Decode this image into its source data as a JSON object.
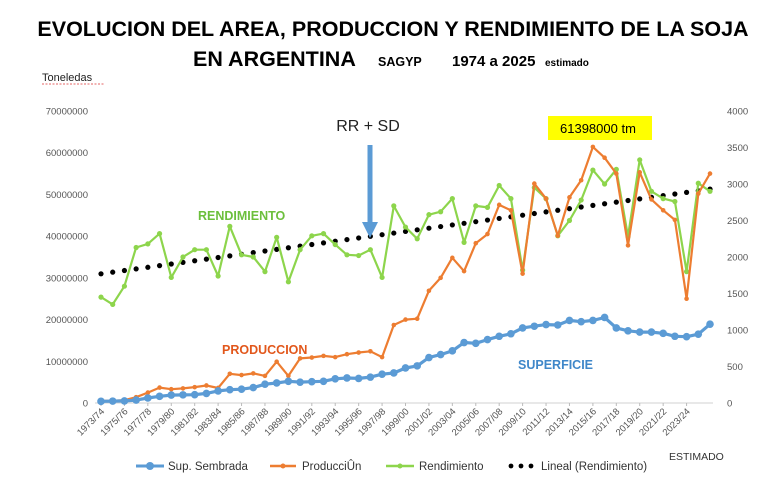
{
  "chart_data": {
    "type": "line",
    "title_line1": "EVOLUCION DEL AREA, PRODUCCION Y RENDIMIENTO DE LA SOJA",
    "title_line2": "EN ARGENTINA",
    "subtitle_source": "SAGYP",
    "subtitle_range": "1974 a  2025",
    "subtitle_note": "estimado",
    "left_axis_label": "Toneledas",
    "left_ylim": [
      0,
      70000000
    ],
    "left_ticks": [
      "0",
      "10000000",
      "20000000",
      "30000000",
      "40000000",
      "50000000",
      "60000000",
      "70000000"
    ],
    "right_ylim": [
      0,
      4000
    ],
    "right_ticks": [
      "0",
      "500",
      "1000",
      "1500",
      "2000",
      "2500",
      "3000",
      "3500",
      "4000"
    ],
    "x_tick_labels": [
      "1973/74",
      "1975/76",
      "1977/78",
      "1979/80",
      "1981/82",
      "1983/84",
      "1985/86",
      "1987/88",
      "1989/90",
      "1991/92",
      "1993/94",
      "1995/96",
      "1997/98",
      "1999/00",
      "2001/02",
      "2003/04",
      "2005/06",
      "2007/08",
      "2009/10",
      "2011/12",
      "2013/14",
      "2015/16",
      "2017/18",
      "2019/20",
      "2021/22",
      "2023/24"
    ],
    "annotation_rr": "RR + SD",
    "annotation_max": "61398000 tm",
    "label_rendimiento": "RENDIMIENTO",
    "label_produccion": "PRODUCCION",
    "label_superficie": "SUPERFICIE",
    "estimado_note": "ESTIMADO",
    "series": [
      {
        "name": "Sup. Sembrada",
        "axis": "left",
        "color": "#5b9bd5",
        "values": [
          400000,
          450000,
          500000,
          700000,
          1200000,
          1600000,
          1900000,
          1950000,
          2000000,
          2300000,
          2900000,
          3200000,
          3300000,
          3700000,
          4500000,
          4800000,
          5200000,
          5000000,
          5100000,
          5200000,
          5800000,
          6000000,
          5900000,
          6200000,
          6900000,
          7200000,
          8400000,
          8900000,
          10900000,
          11600000,
          12500000,
          14500000,
          14300000,
          15200000,
          16000000,
          16600000,
          18000000,
          18400000,
          18800000,
          18700000,
          19800000,
          19500000,
          19800000,
          20500000,
          18000000,
          17300000,
          17000000,
          17000000,
          16700000,
          16000000,
          15900000,
          16500000,
          18900000
        ]
      },
      {
        "name": "ProducciÛn",
        "axis": "left",
        "color": "#ed7d31",
        "values": [
          500000,
          500000,
          700000,
          1400000,
          2500000,
          3700000,
          3300000,
          3500000,
          3800000,
          4200000,
          3600000,
          7000000,
          6700000,
          7100000,
          6500000,
          9900000,
          6500000,
          10700000,
          10900000,
          11300000,
          11000000,
          11700000,
          12100000,
          12400000,
          11000000,
          18700000,
          20000000,
          20200000,
          26900000,
          30000000,
          34800000,
          31600000,
          38300000,
          40500000,
          47500000,
          46200000,
          31000000,
          52600000,
          49000000,
          40100000,
          49300000,
          53400000,
          61398000,
          58800000,
          55000000,
          37800000,
          55300000,
          48800000,
          46200000,
          43900000,
          25000000,
          50200000,
          55000000
        ]
      },
      {
        "name": "Rendimiento",
        "axis": "right",
        "color": "#8dd54c",
        "values": [
          1450,
          1350,
          1600,
          2130,
          2180,
          2320,
          1720,
          2000,
          2100,
          2100,
          1740,
          2420,
          2030,
          2000,
          1800,
          2270,
          1660,
          2100,
          2290,
          2320,
          2170,
          2030,
          2020,
          2100,
          1720,
          2700,
          2410,
          2250,
          2580,
          2620,
          2800,
          2200,
          2700,
          2680,
          2980,
          2800,
          1820,
          2950,
          2800,
          2290,
          2500,
          2780,
          3190,
          3000,
          3200,
          2280,
          3330,
          2900,
          2800,
          2760,
          1800,
          3010,
          2900
        ]
      },
      {
        "name": "Lineal (Rendimiento)",
        "axis": "right",
        "color": "#000000",
        "style": "dotted",
        "values": [
          1770,
          2930
        ]
      }
    ]
  }
}
